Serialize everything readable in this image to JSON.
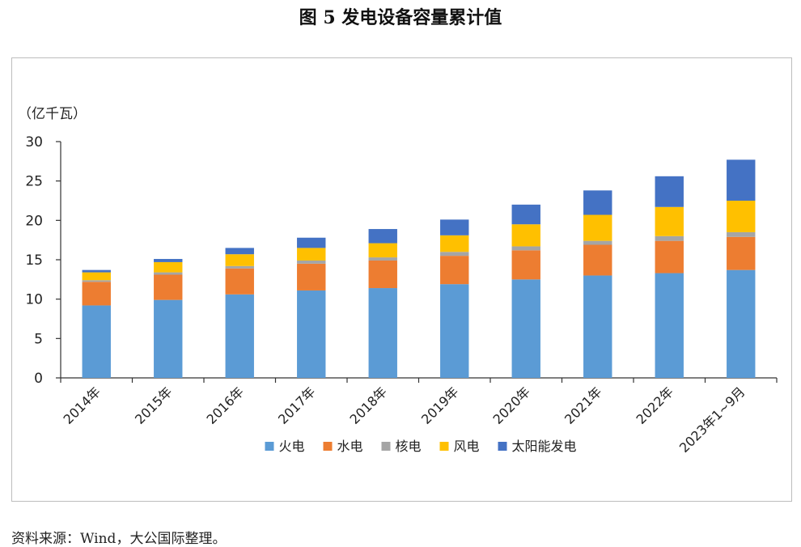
{
  "title": "图 5 发电设备容量累计值",
  "source": "资料来源：Wind，大公国际整理。",
  "chart_data": {
    "type": "bar",
    "stacked": true,
    "unit_label": "（亿千瓦）",
    "ylim": [
      0,
      30
    ],
    "yticks": [
      0,
      5,
      10,
      15,
      20,
      25,
      30
    ],
    "categories": [
      "2014年",
      "2015年",
      "2016年",
      "2017年",
      "2018年",
      "2019年",
      "2020年",
      "2021年",
      "2022年",
      "2023年1~9月"
    ],
    "series": [
      {
        "name": "火电",
        "color": "#5b9bd5",
        "values": [
          9.2,
          9.9,
          10.6,
          11.1,
          11.4,
          11.9,
          12.5,
          13.0,
          13.3,
          13.7
        ]
      },
      {
        "name": "水电",
        "color": "#ed7d31",
        "values": [
          3.0,
          3.2,
          3.3,
          3.4,
          3.5,
          3.6,
          3.7,
          3.9,
          4.1,
          4.2
        ]
      },
      {
        "name": "核电",
        "color": "#a5a5a5",
        "values": [
          0.2,
          0.3,
          0.3,
          0.4,
          0.4,
          0.5,
          0.5,
          0.5,
          0.6,
          0.6
        ]
      },
      {
        "name": "风电",
        "color": "#ffc000",
        "values": [
          1.0,
          1.3,
          1.5,
          1.6,
          1.8,
          2.1,
          2.8,
          3.3,
          3.7,
          4.0
        ]
      },
      {
        "name": "太阳能发电",
        "color": "#4472c4",
        "values": [
          0.3,
          0.4,
          0.8,
          1.3,
          1.8,
          2.0,
          2.5,
          3.1,
          3.9,
          5.2
        ]
      }
    ],
    "grid": false,
    "legend_position": "bottom-center"
  }
}
